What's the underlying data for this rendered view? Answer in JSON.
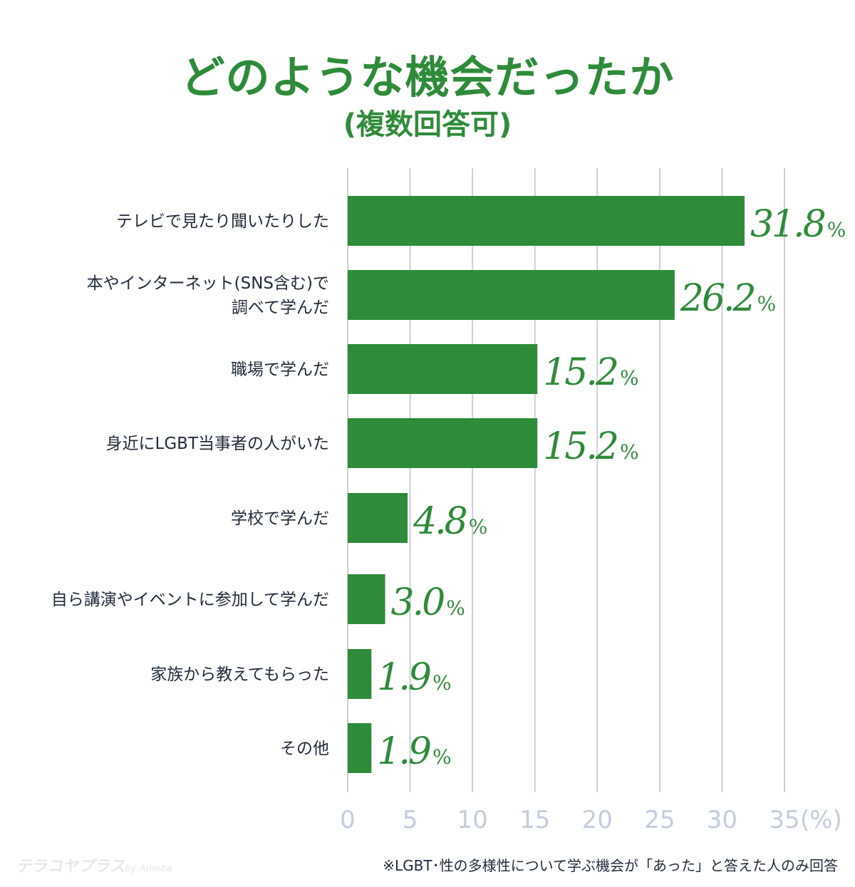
{
  "chart_data": {
    "type": "bar",
    "orientation": "horizontal",
    "title": "どのような機会だったか",
    "subtitle": "(複数回答可)",
    "categories": [
      [
        "テレビで見たり聞いたりした"
      ],
      [
        "本やインターネット(SNS含む)で",
        "調べて学んだ"
      ],
      [
        "職場で学んだ"
      ],
      [
        "身近にLGBT当事者の人がいた"
      ],
      [
        "学校で学んだ"
      ],
      [
        "自ら講演やイベントに参加して学んだ"
      ],
      [
        "家族から教えてもらった"
      ],
      [
        "その他"
      ]
    ],
    "values": [
      31.8,
      26.2,
      15.2,
      15.2,
      4.8,
      3.0,
      1.9,
      1.9
    ],
    "value_labels": [
      "31.8",
      "26.2",
      "15.2",
      "15.2",
      "4.8",
      "3.0",
      "1.9",
      "1.9"
    ],
    "value_unit": "%",
    "xlim": [
      0,
      35
    ],
    "xticks": [
      "0",
      "5",
      "10",
      "15",
      "20",
      "25",
      "30",
      "35"
    ],
    "xunit": "(%)",
    "grid": true,
    "bar_color": "#2e8b3a"
  },
  "footnote": "※LGBT･性の多様性について学ぶ機会が「あった」と答えた人のみ回答",
  "logo": {
    "main": "テラコヤプラス",
    "sub": "by Ameba"
  }
}
